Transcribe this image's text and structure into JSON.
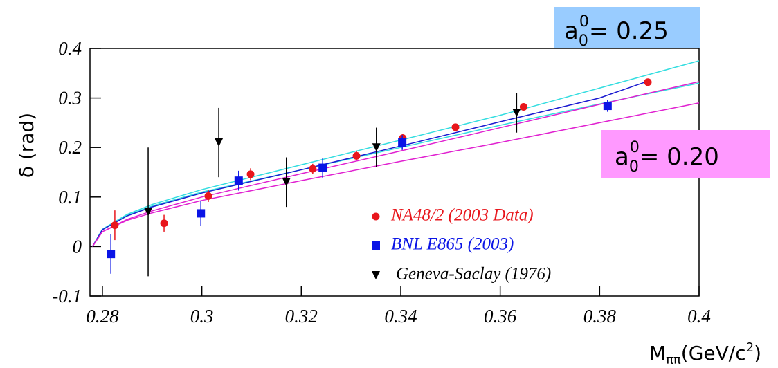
{
  "chart_data": {
    "type": "scatter",
    "y_label": "δ (rad)",
    "x_label": {
      "main": "M",
      "subscript": "ππ",
      "unit": "(GeV/c",
      "superscript": "2",
      "close": ")"
    },
    "xlim": [
      0.2775,
      0.4
    ],
    "ylim": [
      -0.1,
      0.4
    ],
    "xticks": [
      0.28,
      0.3,
      0.32,
      0.34,
      0.36,
      0.38,
      0.4
    ],
    "yticks": [
      -0.1,
      0,
      0.1,
      0.2,
      0.3,
      0.4
    ],
    "series": [
      {
        "name": "NA48/2 (2003 Data)",
        "color": "#e8161c",
        "marker": "circle",
        "x": [
          0.2825,
          0.2924,
          0.3013,
          0.3098,
          0.3223,
          0.3311,
          0.3404,
          0.351,
          0.3647,
          0.3897
        ],
        "values": [
          0.043,
          0.047,
          0.102,
          0.146,
          0.157,
          0.183,
          0.219,
          0.241,
          0.282,
          0.332
        ],
        "errors": [
          0.03,
          0.017,
          0.012,
          0.012,
          0.01,
          0.009,
          0.009,
          0.007,
          0.007,
          0.006
        ]
      },
      {
        "name": "BNL E865 (2003)",
        "color": "#0a14e6",
        "marker": "square",
        "x": [
          0.2817,
          0.2998,
          0.3074,
          0.3243,
          0.3403,
          0.3816
        ],
        "values": [
          -0.015,
          0.067,
          0.133,
          0.159,
          0.21,
          0.284
        ],
        "errors": [
          0.04,
          0.025,
          0.02,
          0.02,
          0.015,
          0.012
        ]
      },
      {
        "name": "Geneva-Saclay (1976)",
        "color": "#000000",
        "marker": "triangle",
        "x": [
          0.2892,
          0.3034,
          0.317,
          0.3351,
          0.3633
        ],
        "values": [
          0.07,
          0.21,
          0.13,
          0.2,
          0.27
        ],
        "errors": [
          0.13,
          0.07,
          0.05,
          0.04,
          0.04
        ]
      }
    ],
    "curves": [
      {
        "color": "#33dde0",
        "x": [
          0.278,
          0.28,
          0.285,
          0.29,
          0.3,
          0.32,
          0.34,
          0.36,
          0.38,
          0.4
        ],
        "values": [
          0,
          0.035,
          0.065,
          0.085,
          0.115,
          0.165,
          0.215,
          0.265,
          0.32,
          0.375
        ]
      },
      {
        "color": "#33dde0",
        "x": [
          0.278,
          0.28,
          0.285,
          0.29,
          0.3,
          0.32,
          0.34,
          0.36,
          0.38,
          0.4
        ],
        "values": [
          0,
          0.035,
          0.063,
          0.082,
          0.11,
          0.155,
          0.2,
          0.245,
          0.288,
          0.33
        ]
      },
      {
        "color": "#1a1ad0",
        "x": [
          0.278,
          0.28,
          0.285,
          0.29,
          0.3,
          0.32,
          0.34,
          0.36,
          0.38,
          0.39
        ],
        "values": [
          0,
          0.034,
          0.062,
          0.08,
          0.108,
          0.155,
          0.203,
          0.252,
          0.3,
          0.335
        ]
      },
      {
        "color": "#e020d0",
        "x": [
          0.278,
          0.28,
          0.285,
          0.29,
          0.3,
          0.32,
          0.34,
          0.36,
          0.38,
          0.4
        ],
        "values": [
          0,
          0.03,
          0.055,
          0.072,
          0.1,
          0.147,
          0.193,
          0.24,
          0.287,
          0.333
        ]
      },
      {
        "color": "#e020d0",
        "x": [
          0.278,
          0.28,
          0.285,
          0.29,
          0.3,
          0.32,
          0.34,
          0.36,
          0.38,
          0.4
        ],
        "values": [
          0,
          0.03,
          0.053,
          0.068,
          0.093,
          0.133,
          0.172,
          0.21,
          0.25,
          0.29
        ]
      }
    ],
    "annotations": [
      {
        "label": "a",
        "subscript": "0",
        "superscript": "0",
        "text": "= 0.25",
        "background": "#99ccff"
      },
      {
        "label": "a",
        "subscript": "0",
        "superscript": "0",
        "text": "= 0.20",
        "background": "#ff99ff"
      }
    ]
  }
}
